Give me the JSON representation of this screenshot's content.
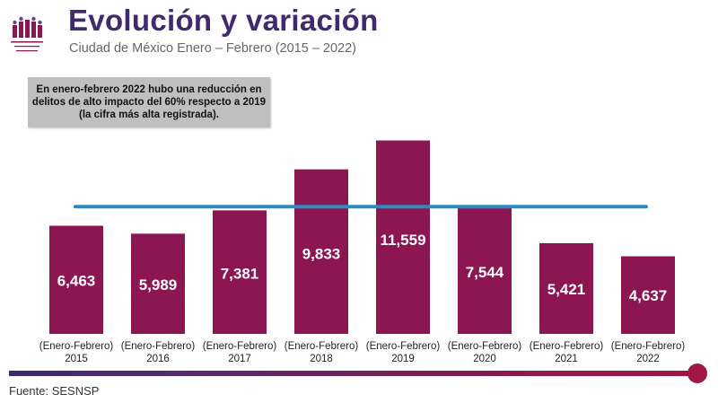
{
  "header": {
    "title": "Evolución y variación",
    "subtitle": "Ciudad de México Enero – Febrero (2015 – 2022)"
  },
  "callout": {
    "part1": "En enero-",
    "part2": "febrero",
    "part3": " 2022 hubo una reducción en delitos de alto impacto del 60% respecto a 2019 (la cifra más alta registrada)."
  },
  "chart_data": {
    "type": "bar",
    "title": "Evolución y variación",
    "categories": [
      "(Enero-Febrero) 2015",
      "(Enero-Febrero) 2016",
      "(Enero-Febrero) 2017",
      "(Enero-Febrero) 2018",
      "(Enero-Febrero) 2019",
      "(Enero-Febrero) 2020",
      "(Enero-Febrero) 2021",
      "(Enero-Febrero) 2022"
    ],
    "category_lines": [
      [
        "(Enero-Febrero)",
        "2015"
      ],
      [
        "(Enero-Febrero)",
        "2016"
      ],
      [
        "(Enero-Febrero)",
        "2017"
      ],
      [
        "(Enero-Febrero)",
        "2018"
      ],
      [
        "(Enero-Febrero)",
        "2019"
      ],
      [
        "(Enero-Febrero)",
        "2020"
      ],
      [
        "(Enero-Febrero)",
        "2021"
      ],
      [
        "(Enero-Febrero)",
        "2022"
      ]
    ],
    "values": [
      6463,
      5989,
      7381,
      9833,
      11559,
      7544,
      5421,
      4637
    ],
    "value_labels": [
      "6,463",
      "5,989",
      "7,381",
      "9,833",
      "11,559",
      "7,544",
      "5,421",
      "4,637"
    ],
    "reference_line": 7600,
    "ylim": [
      0,
      11800
    ],
    "xlabel": "",
    "ylabel": "",
    "grid": false,
    "bar_color": "#8b1652",
    "line_color": "#2a8bbf"
  },
  "footer": {
    "source": "Fuente: SESNSP"
  }
}
